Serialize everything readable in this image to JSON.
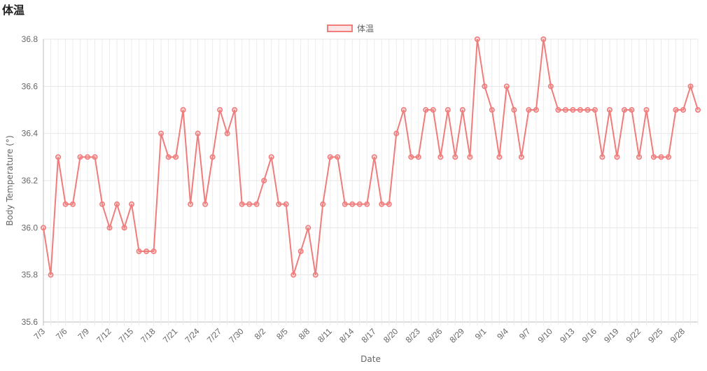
{
  "page": {
    "title": "体温"
  },
  "chart_data": {
    "type": "line",
    "title": "",
    "xlabel": "Date",
    "ylabel": "Body Temperature (°)",
    "ylim": [
      35.6,
      36.8
    ],
    "yticks": [
      "35.6",
      "35.8",
      "36.0",
      "36.2",
      "36.4",
      "36.6",
      "36.8"
    ],
    "grid": true,
    "legend": "top-center",
    "color": "#f07c7c",
    "x": [
      "7/3",
      "7/4",
      "7/5",
      "7/6",
      "7/7",
      "7/8",
      "7/9",
      "7/10",
      "7/11",
      "7/12",
      "7/13",
      "7/14",
      "7/15",
      "7/16",
      "7/17",
      "7/18",
      "7/19",
      "7/20",
      "7/21",
      "7/22",
      "7/23",
      "7/24",
      "7/25",
      "7/26",
      "7/27",
      "7/28",
      "7/29",
      "7/30",
      "7/31",
      "8/1",
      "8/2",
      "8/3",
      "8/4",
      "8/5",
      "8/6",
      "8/7",
      "8/8",
      "8/9",
      "8/10",
      "8/11",
      "8/12",
      "8/13",
      "8/14",
      "8/15",
      "8/16",
      "8/17",
      "8/18",
      "8/19",
      "8/20",
      "8/21",
      "8/22",
      "8/23",
      "8/24",
      "8/25",
      "8/26",
      "8/27",
      "8/28",
      "8/29",
      "8/30",
      "8/31",
      "9/1",
      "9/2",
      "9/3",
      "9/4",
      "9/5",
      "9/6",
      "9/7",
      "9/8",
      "9/9",
      "9/10",
      "9/11",
      "9/12",
      "9/13",
      "9/14",
      "9/15",
      "9/16",
      "9/17",
      "9/18",
      "9/19",
      "9/20",
      "9/21",
      "9/22",
      "9/23",
      "9/24",
      "9/25",
      "9/26",
      "9/27",
      "9/28",
      "9/29",
      "9/30"
    ],
    "tick_labels": [
      "7/3",
      "7/6",
      "7/9",
      "7/12",
      "7/15",
      "7/18",
      "7/21",
      "7/24",
      "7/27",
      "7/30",
      "8/2",
      "8/5",
      "8/8",
      "8/11",
      "8/14",
      "8/17",
      "8/20",
      "8/23",
      "8/26",
      "8/29",
      "9/1",
      "9/4",
      "9/7",
      "9/10",
      "9/13",
      "9/16",
      "9/19",
      "9/22",
      "9/25",
      "9/28"
    ],
    "series": [
      {
        "name": "体温",
        "values": [
          36.0,
          35.8,
          36.3,
          36.1,
          36.1,
          36.3,
          36.3,
          36.3,
          36.1,
          36.0,
          36.1,
          36.0,
          36.1,
          35.9,
          35.9,
          35.9,
          36.4,
          36.3,
          36.3,
          36.5,
          36.1,
          36.4,
          36.1,
          36.3,
          36.5,
          36.4,
          36.5,
          36.1,
          36.1,
          36.1,
          36.2,
          36.3,
          36.1,
          36.1,
          35.8,
          35.9,
          36.0,
          35.8,
          36.1,
          36.3,
          36.3,
          36.1,
          36.1,
          36.1,
          36.1,
          36.3,
          36.1,
          36.1,
          36.4,
          36.5,
          36.3,
          36.3,
          36.5,
          36.5,
          36.3,
          36.5,
          36.3,
          36.5,
          36.3,
          36.8,
          36.6,
          36.5,
          36.3,
          36.6,
          36.5,
          36.3,
          36.5,
          36.5,
          36.8,
          36.6,
          36.5,
          36.5,
          36.5,
          36.5,
          36.5,
          36.5,
          36.3,
          36.5,
          36.3,
          36.5,
          36.5,
          36.3,
          36.5,
          36.3,
          36.3,
          36.3,
          36.5,
          36.5,
          36.6,
          36.5
        ]
      }
    ]
  }
}
